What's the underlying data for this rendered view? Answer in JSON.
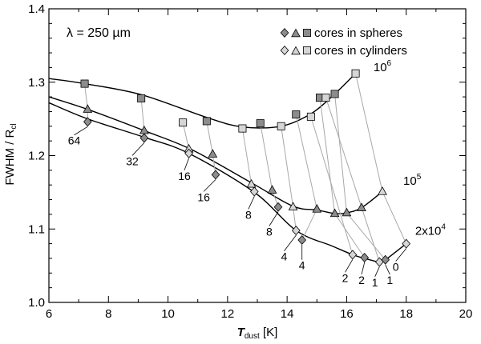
{
  "chart_data": {
    "type": "scatter",
    "title": "λ = 250 µm",
    "xlabel": "T",
    "xlabel_sub": "dust",
    "xlabel_unit": " [K]",
    "ylabel": "FWHM / R",
    "ylabel_sub": "cl",
    "xlim": [
      6,
      20
    ],
    "ylim": [
      1.0,
      1.4
    ],
    "xticks": [
      6,
      8,
      10,
      12,
      14,
      16,
      18,
      20
    ],
    "yticks": [
      1.0,
      1.1,
      1.2,
      1.3,
      1.4
    ],
    "xtick_labels": [
      "6",
      "8",
      "10",
      "12",
      "14",
      "16",
      "18",
      "20"
    ],
    "ytick_labels": [
      "1.0",
      "1.1",
      "1.2",
      "1.3",
      "1.4"
    ],
    "legend": {
      "position": "top-right",
      "entries": [
        {
          "label": "cores in spheres",
          "shade": "dark"
        },
        {
          "label": "cores in cylinders",
          "shade": "light"
        }
      ]
    },
    "series": [
      {
        "name": "spheres 10^6",
        "marker": "square",
        "shade": "dark",
        "x": [
          7.2,
          9.1,
          11.3,
          13.1,
          14.3,
          15.1,
          15.6
        ],
        "y": [
          1.298,
          1.278,
          1.247,
          1.244,
          1.256,
          1.279,
          1.284
        ]
      },
      {
        "name": "cylinders 10^6",
        "marker": "square",
        "shade": "light",
        "x": [
          10.5,
          12.5,
          13.8,
          14.8,
          15.3,
          16.3
        ],
        "y": [
          1.245,
          1.237,
          1.24,
          1.253,
          1.279,
          1.312
        ]
      },
      {
        "name": "spheres 10^5",
        "marker": "triangle",
        "shade": "dark",
        "x": [
          7.3,
          9.2,
          11.5,
          13.5,
          15.0,
          15.6,
          16.0,
          16.5
        ],
        "y": [
          1.263,
          1.234,
          1.202,
          1.153,
          1.127,
          1.121,
          1.122,
          1.129
        ]
      },
      {
        "name": "cylinders 10^5",
        "marker": "triangle",
        "shade": "light",
        "x": [
          10.7,
          12.8,
          14.2,
          17.2
        ],
        "y": [
          1.209,
          1.161,
          1.13,
          1.151
        ]
      },
      {
        "name": "spheres 2x10^4",
        "marker": "diamond",
        "shade": "dark",
        "x": [
          7.3,
          9.2,
          11.6,
          13.7,
          14.5,
          16.6,
          17.3
        ],
        "y": [
          1.246,
          1.224,
          1.174,
          1.13,
          1.085,
          1.061,
          1.058
        ]
      },
      {
        "name": "cylinders 2x10^4",
        "marker": "diamond",
        "shade": "light",
        "x": [
          10.7,
          12.9,
          14.3,
          16.2,
          17.1,
          18.0
        ],
        "y": [
          1.203,
          1.151,
          1.098,
          1.065,
          1.055,
          1.08
        ]
      }
    ],
    "fit_curves": [
      {
        "name": "10^6 fit",
        "label": "10^6",
        "label_base": "10",
        "label_exp": "6",
        "x": [
          6.0,
          7.2,
          9.1,
          11.3,
          12.5,
          13.8,
          14.8,
          15.6,
          16.3
        ],
        "y": [
          1.305,
          1.298,
          1.283,
          1.252,
          1.239,
          1.24,
          1.257,
          1.284,
          1.312
        ]
      },
      {
        "name": "10^5 fit",
        "label": "10^5",
        "label_base": "10",
        "label_exp": "5",
        "x": [
          6.0,
          7.3,
          9.2,
          10.8,
          12.8,
          14.2,
          15.0,
          15.6,
          16.0,
          16.5,
          17.2
        ],
        "y": [
          1.28,
          1.263,
          1.234,
          1.208,
          1.163,
          1.131,
          1.126,
          1.121,
          1.122,
          1.129,
          1.151
        ]
      },
      {
        "name": "2x10^4 fit",
        "label": "2x10^4",
        "label_base": "2x10",
        "label_exp": "4",
        "x": [
          6.0,
          7.3,
          9.2,
          10.7,
          12.9,
          14.3,
          15.5,
          16.2,
          16.6,
          17.1,
          17.3,
          18.0
        ],
        "y": [
          1.272,
          1.25,
          1.225,
          1.203,
          1.15,
          1.098,
          1.077,
          1.065,
          1.06,
          1.055,
          1.058,
          1.08
        ]
      }
    ],
    "connectors": [
      {
        "x": [
          7.2,
          7.3,
          7.3
        ],
        "y": [
          1.298,
          1.263,
          1.246
        ]
      },
      {
        "x": [
          9.1,
          9.2,
          9.2
        ],
        "y": [
          1.278,
          1.234,
          1.224
        ]
      },
      {
        "x": [
          11.3,
          11.5,
          11.6
        ],
        "y": [
          1.247,
          1.202,
          1.174
        ]
      },
      {
        "x": [
          13.1,
          13.5,
          13.7
        ],
        "y": [
          1.244,
          1.153,
          1.13
        ]
      },
      {
        "x": [
          14.3,
          15.0,
          14.5
        ],
        "y": [
          1.256,
          1.127,
          1.085
        ]
      },
      {
        "x": [
          15.1,
          15.6,
          16.6
        ],
        "y": [
          1.279,
          1.121,
          1.061
        ]
      },
      {
        "x": [
          15.6,
          16.0,
          17.3
        ],
        "y": [
          1.284,
          1.122,
          1.058
        ]
      },
      {
        "x": [
          10.5,
          10.7,
          10.7
        ],
        "y": [
          1.245,
          1.209,
          1.203
        ]
      },
      {
        "x": [
          12.5,
          12.8,
          12.9
        ],
        "y": [
          1.237,
          1.161,
          1.151
        ]
      },
      {
        "x": [
          13.8,
          14.2,
          14.3
        ],
        "y": [
          1.24,
          1.13,
          1.098
        ]
      },
      {
        "x": [
          14.8,
          16.2
        ],
        "y": [
          1.253,
          1.065
        ]
      },
      {
        "x": [
          15.3,
          17.1
        ],
        "y": [
          1.279,
          1.055
        ]
      },
      {
        "x": [
          16.3,
          17.2,
          18.0
        ],
        "y": [
          1.312,
          1.151,
          1.08
        ]
      }
    ],
    "annotations": [
      {
        "text": "64",
        "x": 6.85,
        "y": 1.215,
        "point_x": 7.3,
        "point_y": 1.246
      },
      {
        "text": "32",
        "x": 8.8,
        "y": 1.187,
        "point_x": 9.2,
        "point_y": 1.224
      },
      {
        "text": "16",
        "x": 10.55,
        "y": 1.167,
        "point_x": 10.7,
        "point_y": 1.203
      },
      {
        "text": "16",
        "x": 11.2,
        "y": 1.138,
        "point_x": 11.6,
        "point_y": 1.174
      },
      {
        "text": "8",
        "x": 12.7,
        "y": 1.114,
        "point_x": 12.9,
        "point_y": 1.151
      },
      {
        "text": "8",
        "x": 13.4,
        "y": 1.091,
        "point_x": 13.7,
        "point_y": 1.13
      },
      {
        "text": "4",
        "x": 13.9,
        "y": 1.057,
        "point_x": 14.3,
        "point_y": 1.098
      },
      {
        "text": "4",
        "x": 14.5,
        "y": 1.045,
        "point_x": 14.5,
        "point_y": 1.085
      },
      {
        "text": "2",
        "x": 15.95,
        "y": 1.028,
        "point_x": 16.2,
        "point_y": 1.065
      },
      {
        "text": "2",
        "x": 16.5,
        "y": 1.025,
        "point_x": 16.6,
        "point_y": 1.061
      },
      {
        "text": "1",
        "x": 16.95,
        "y": 1.022,
        "point_x": 17.1,
        "point_y": 1.055
      },
      {
        "text": "1",
        "x": 17.45,
        "y": 1.025,
        "point_x": 17.3,
        "point_y": 1.058
      },
      {
        "text": "0",
        "x": 17.65,
        "y": 1.043,
        "point_x": 18.0,
        "point_y": 1.08
      }
    ],
    "curve_labels": [
      {
        "text": "10^6",
        "base": "10",
        "exp": "6",
        "x": 16.9,
        "y": 1.315
      },
      {
        "text": "10^5",
        "base": "10",
        "exp": "5",
        "x": 17.9,
        "y": 1.16
      },
      {
        "text": "2x10^4",
        "base": "2x10",
        "exp": "4",
        "x": 18.3,
        "y": 1.092
      }
    ]
  }
}
